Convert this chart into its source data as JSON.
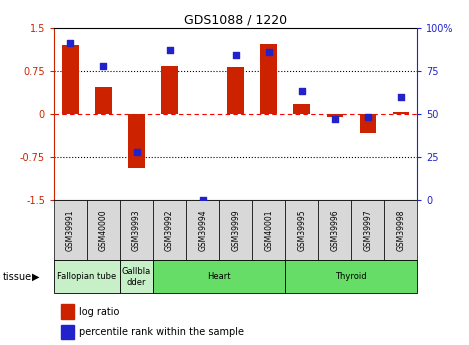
{
  "title": "GDS1088 / 1220",
  "samples": [
    "GSM39991",
    "GSM40000",
    "GSM39993",
    "GSM39992",
    "GSM39994",
    "GSM39999",
    "GSM40001",
    "GSM39995",
    "GSM39996",
    "GSM39997",
    "GSM39998"
  ],
  "log_ratio": [
    1.2,
    0.47,
    -0.95,
    0.83,
    0.0,
    0.82,
    1.22,
    0.18,
    -0.06,
    -0.33,
    0.04
  ],
  "percentile_rank": [
    91,
    78,
    28,
    87,
    0,
    84,
    86,
    63,
    47,
    48,
    60
  ],
  "tissue_groups": [
    {
      "label": "Fallopian tube",
      "start": 0,
      "end": 2,
      "color": "#C8F0C8"
    },
    {
      "label": "Gallbla\ndder",
      "start": 2,
      "end": 3,
      "color": "#C8F0C8"
    },
    {
      "label": "Heart",
      "start": 3,
      "end": 7,
      "color": "#66DD66"
    },
    {
      "label": "Thyroid",
      "start": 7,
      "end": 11,
      "color": "#66DD66"
    }
  ],
  "bar_color": "#CC2200",
  "dot_color": "#2222CC",
  "ylim": [
    -1.5,
    1.5
  ],
  "y2lim": [
    0,
    100
  ],
  "yticks": [
    -1.5,
    -0.75,
    0,
    0.75,
    1.5
  ],
  "y2ticks": [
    0,
    25,
    50,
    75,
    100
  ],
  "y2ticklabels": [
    "0",
    "25",
    "50",
    "75",
    "100%"
  ],
  "bar_width": 0.5
}
